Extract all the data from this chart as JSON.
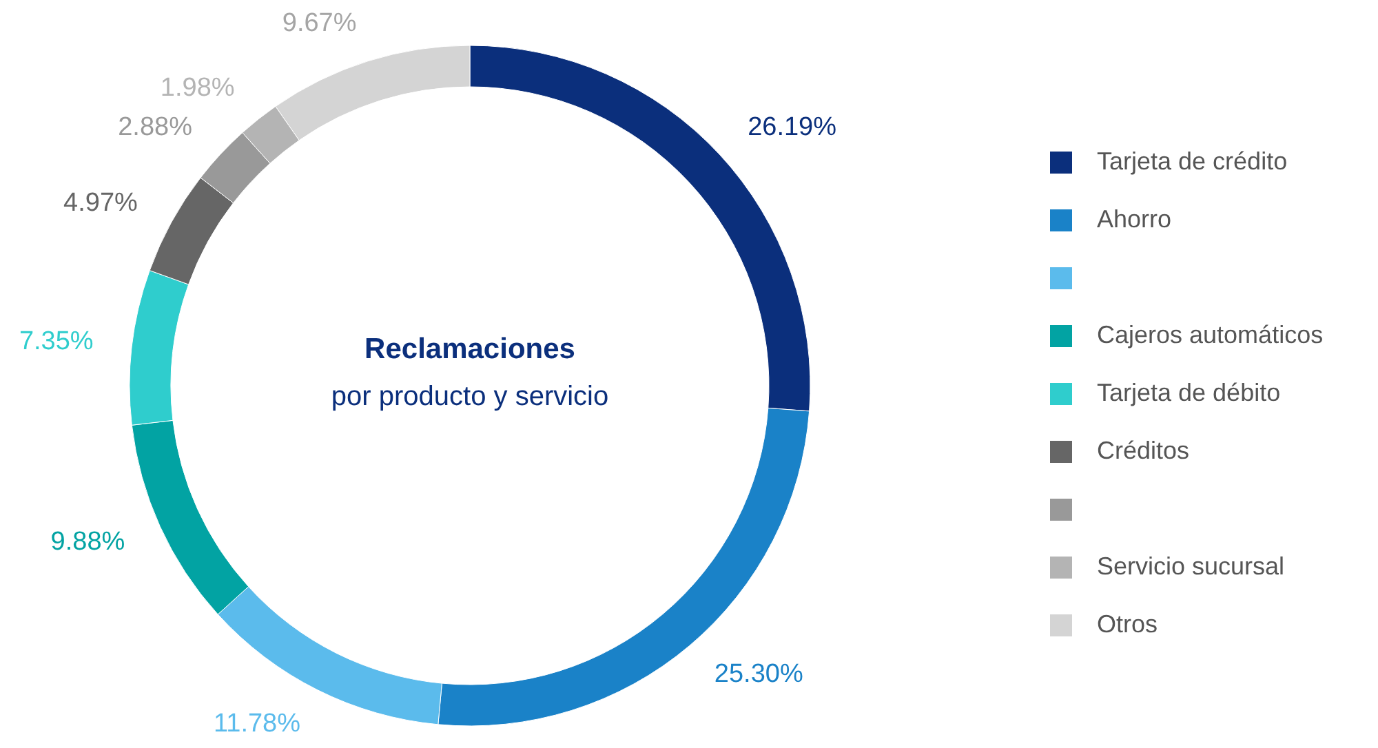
{
  "chart_data": {
    "type": "donut",
    "title": "Reclamaciones",
    "subtitle": "por producto y servicio",
    "categories": [
      "Tarjeta de crédito",
      "Ahorro",
      null,
      "Cajeros automáticos",
      "Tarjeta de débito",
      "Créditos",
      null,
      "Servicio sucursal",
      "Otros"
    ],
    "values": [
      26.19,
      25.3,
      11.78,
      9.88,
      7.35,
      4.97,
      2.88,
      1.98,
      9.67
    ],
    "value_labels": [
      "26.19%",
      "25.30%",
      "11.78%",
      "9.88%",
      "7.35%",
      "4.97%",
      "2.88%",
      "1.98%",
      "9.67%"
    ],
    "colors": [
      "#0b2f7c",
      "#1a82c8",
      "#5bbbec",
      "#02a3a3",
      "#2fcdcd",
      "#666666",
      "#999999",
      "#b4b4b4",
      "#d4d4d4"
    ],
    "legend": "right"
  }
}
